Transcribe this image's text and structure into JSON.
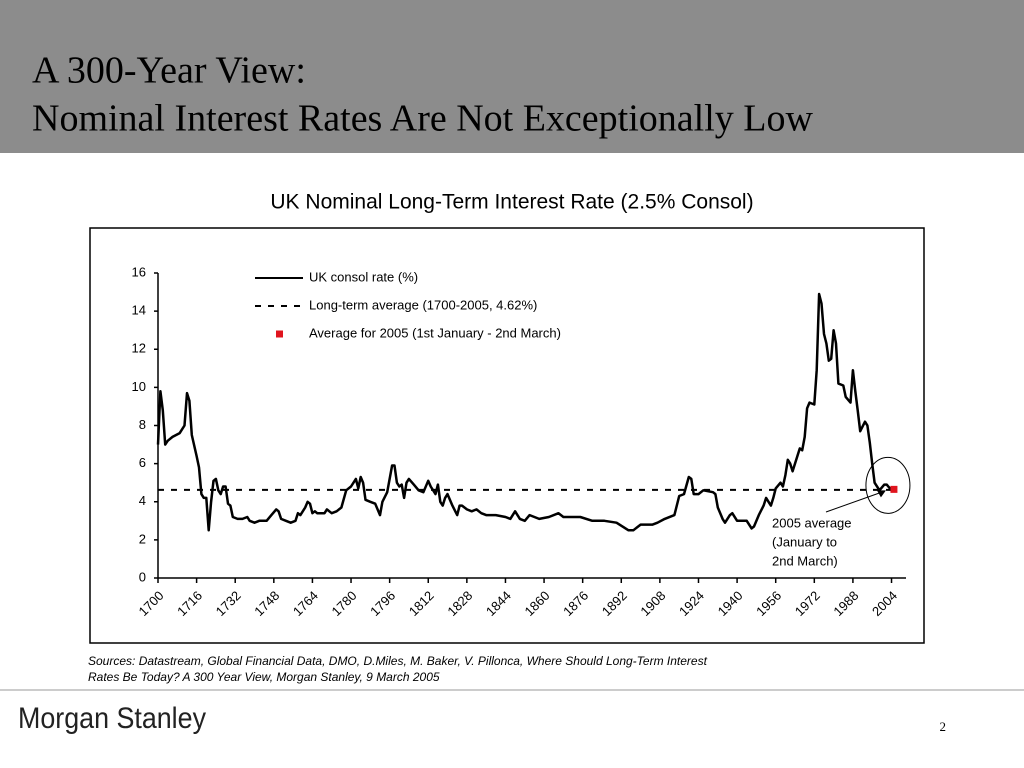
{
  "header": {
    "title_lines": [
      "A 300-Year View:",
      "Nominal Interest Rates Are Not Exceptionally Low"
    ]
  },
  "chart_data": {
    "type": "line",
    "title": "UK Nominal Long-Term Interest Rate (2.5% Consol)",
    "xlim": [
      1700,
      2010
    ],
    "xticks": [
      1700,
      1716,
      1732,
      1748,
      1764,
      1780,
      1796,
      1812,
      1828,
      1844,
      1860,
      1876,
      1892,
      1908,
      1924,
      1940,
      1956,
      1972,
      1988,
      2004
    ],
    "ylim": [
      0,
      16
    ],
    "yticks": [
      0,
      2,
      4,
      6,
      8,
      10,
      12,
      14,
      16
    ],
    "series": [
      {
        "name": "UK consol rate (%)",
        "color": "#000000",
        "style": "solid",
        "x": [
          1700,
          1701,
          1702,
          1703,
          1704,
          1706,
          1709,
          1711,
          1712,
          1713,
          1714,
          1716,
          1717,
          1718,
          1719,
          1720,
          1721,
          1722,
          1723,
          1724,
          1725,
          1726,
          1727,
          1728,
          1729,
          1730,
          1731,
          1733,
          1735,
          1737,
          1738,
          1740,
          1742,
          1745,
          1747,
          1749,
          1750,
          1751,
          1753,
          1755,
          1757,
          1758,
          1759,
          1761,
          1762,
          1763,
          1764,
          1765,
          1766,
          1769,
          1770,
          1771,
          1772,
          1774,
          1776,
          1778,
          1780,
          1782,
          1783,
          1784,
          1785,
          1786,
          1788,
          1790,
          1792,
          1793,
          1795,
          1797,
          1798,
          1799,
          1800,
          1801,
          1802,
          1803,
          1804,
          1806,
          1808,
          1810,
          1812,
          1813,
          1815,
          1816,
          1817,
          1818,
          1819,
          1820,
          1822,
          1824,
          1825,
          1826,
          1828,
          1830,
          1832,
          1834,
          1836,
          1840,
          1844,
          1846,
          1848,
          1850,
          1852,
          1854,
          1856,
          1858,
          1862,
          1866,
          1868,
          1875,
          1880,
          1885,
          1890,
          1895,
          1897,
          1900,
          1905,
          1907,
          1910,
          1914,
          1916,
          1918,
          1920,
          1921,
          1922,
          1924,
          1926,
          1930,
          1931,
          1932,
          1934,
          1935,
          1937,
          1938,
          1940,
          1944,
          1946,
          1947,
          1949,
          1951,
          1952,
          1953,
          1954,
          1955,
          1956,
          1958,
          1959,
          1960,
          1961,
          1962,
          1963,
          1964,
          1965,
          1966,
          1967,
          1968,
          1969,
          1970,
          1972,
          1973,
          1974,
          1975,
          1976,
          1977,
          1978,
          1979,
          1980,
          1981,
          1982,
          1984,
          1985,
          1987,
          1988,
          1989,
          1990,
          1991,
          1993,
          1994,
          1995,
          1996,
          1997,
          1999,
          2001,
          2002,
          2004
        ],
        "values": [
          7.0,
          9.8,
          8.8,
          7.0,
          7.2,
          7.4,
          7.6,
          8.0,
          9.7,
          9.3,
          7.5,
          6.4,
          5.8,
          4.4,
          4.2,
          4.2,
          2.5,
          4.0,
          5.1,
          5.2,
          4.6,
          4.4,
          4.8,
          4.8,
          3.9,
          3.8,
          3.2,
          3.1,
          3.1,
          3.2,
          3.0,
          2.9,
          3.0,
          3.0,
          3.3,
          3.6,
          3.5,
          3.1,
          3.0,
          2.9,
          3.0,
          3.4,
          3.3,
          3.7,
          4.0,
          3.9,
          3.4,
          3.5,
          3.4,
          3.4,
          3.6,
          3.5,
          3.4,
          3.5,
          3.7,
          4.6,
          4.8,
          5.2,
          4.7,
          5.3,
          5.0,
          4.1,
          4.0,
          3.9,
          3.3,
          4.0,
          4.5,
          5.9,
          5.9,
          5.0,
          4.8,
          4.9,
          4.2,
          5.0,
          5.2,
          4.9,
          4.6,
          4.5,
          5.1,
          4.8,
          4.4,
          4.9,
          4.0,
          3.8,
          4.2,
          4.4,
          3.8,
          3.3,
          3.8,
          3.8,
          3.6,
          3.5,
          3.6,
          3.4,
          3.3,
          3.3,
          3.2,
          3.1,
          3.5,
          3.1,
          3.0,
          3.3,
          3.2,
          3.1,
          3.2,
          3.4,
          3.2,
          3.2,
          3.0,
          3.0,
          2.9,
          2.5,
          2.5,
          2.8,
          2.8,
          2.9,
          3.1,
          3.3,
          4.3,
          4.4,
          5.3,
          5.2,
          4.4,
          4.4,
          4.6,
          4.5,
          4.4,
          3.7,
          3.1,
          2.9,
          3.3,
          3.4,
          3.0,
          3.0,
          2.6,
          2.7,
          3.3,
          3.8,
          4.2,
          4.0,
          3.8,
          4.2,
          4.7,
          5.0,
          4.8,
          5.4,
          6.2,
          6.0,
          5.6,
          6.0,
          6.4,
          6.8,
          6.7,
          7.4,
          8.9,
          9.2,
          9.1,
          10.9,
          14.9,
          14.4,
          12.8,
          12.3,
          11.4,
          11.5,
          13.0,
          12.3,
          10.2,
          10.1,
          9.5,
          9.2,
          10.9,
          9.8,
          8.8,
          7.7,
          8.2,
          8.0,
          7.1,
          6.0,
          5.0,
          4.6,
          4.9,
          4.9,
          4.6
        ]
      },
      {
        "name": "Long-term average (1700-2005, 4.62%)",
        "color": "#000000",
        "style": "dashed",
        "x": [
          1700,
          2005
        ],
        "values": [
          4.62,
          4.62
        ]
      },
      {
        "name": "Average for 2005 (1st January - 2nd March)",
        "color": "#e0141e",
        "style": "marker",
        "x": [
          2005
        ],
        "values": [
          4.65
        ]
      }
    ],
    "annotation": {
      "lines": [
        "2005 average",
        "(January to",
        "2nd March)"
      ]
    }
  },
  "footer": {
    "sources": [
      "Sources: Datastream, Global Financial Data, DMO, D.Miles, M. Baker, V. Pillonca, Where Should Long-Term Interest",
      "Rates Be Today? A 300 Year View, Morgan Stanley, 9 March 2005"
    ],
    "logo": "Morgan Stanley",
    "page": "2"
  }
}
